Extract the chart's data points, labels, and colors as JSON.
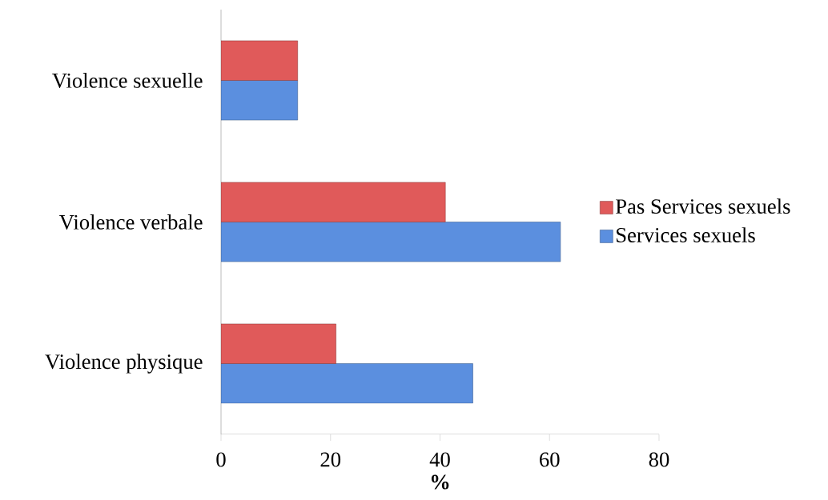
{
  "chart_data": {
    "type": "bar",
    "orientation": "horizontal",
    "xlabel": "**%**",
    "categories": [
      "Violence sexuelle",
      "Violence verbale",
      "Violence physique"
    ],
    "series": [
      {
        "name": "Services sexuels",
        "color": "#5b8fdf",
        "values": [
          14,
          62,
          46
        ]
      },
      {
        "name": "Pas Services sexuels",
        "color": "#e05a5a",
        "values": [
          14,
          41,
          21
        ]
      }
    ],
    "xlim": [
      0,
      80
    ],
    "xticks": [
      0,
      20,
      40,
      60,
      80
    ],
    "legend": "right",
    "grid": false
  }
}
